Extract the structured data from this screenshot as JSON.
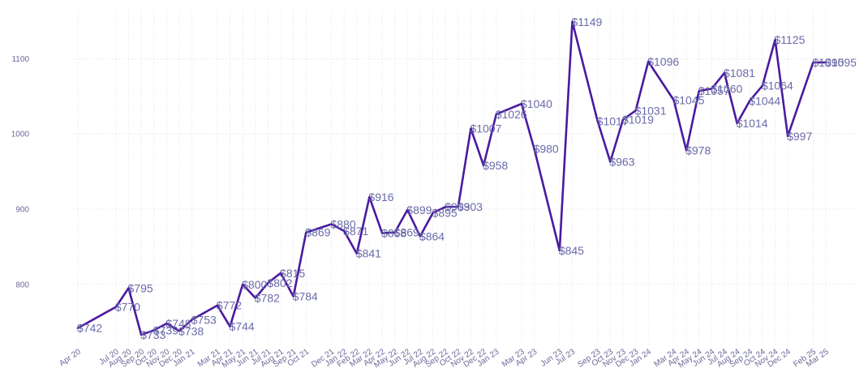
{
  "chart_data": {
    "type": "line",
    "title": "",
    "xlabel": "",
    "ylabel": "",
    "ylim": [
      720,
      1165
    ],
    "yticks": [
      800,
      900,
      1000,
      1100
    ],
    "grid": true,
    "line_color": "#4a1aa0",
    "label_prefix": "$",
    "points": [
      {
        "x": "Apr 20",
        "y": 742
      },
      {
        "x": "Jul 20",
        "y": 770
      },
      {
        "x": "Aug 20",
        "y": 795
      },
      {
        "x": "Sep 20",
        "y": 733
      },
      {
        "x": "Oct 20",
        "y": 739
      },
      {
        "x": "Nov 20",
        "y": 748
      },
      {
        "x": "Dec 20",
        "y": 738
      },
      {
        "x": "Jan 21",
        "y": 753
      },
      {
        "x": "Mar 21",
        "y": 772
      },
      {
        "x": "Apr 21",
        "y": 744
      },
      {
        "x": "May 21",
        "y": 800
      },
      {
        "x": "Jun 21",
        "y": 782
      },
      {
        "x": "Jul 21",
        "y": 802
      },
      {
        "x": "Aug 21",
        "y": 815
      },
      {
        "x": "Sep 21",
        "y": 784
      },
      {
        "x": "Oct 21",
        "y": 869
      },
      {
        "x": "Dec 21",
        "y": 880
      },
      {
        "x": "Jan 22",
        "y": 871
      },
      {
        "x": "Feb 22",
        "y": 841
      },
      {
        "x": "Mar 22",
        "y": 916
      },
      {
        "x": "Apr 22",
        "y": 868
      },
      {
        "x": "May 22",
        "y": 869
      },
      {
        "x": "Jun 22",
        "y": 899
      },
      {
        "x": "Jul 22",
        "y": 864
      },
      {
        "x": "Aug 22",
        "y": 895
      },
      {
        "x": "Sep 22",
        "y": 903
      },
      {
        "x": "Oct 22",
        "y": 903
      },
      {
        "x": "Nov 22",
        "y": 1007
      },
      {
        "x": "Dec 22",
        "y": 958
      },
      {
        "x": "Jan 23",
        "y": 1026
      },
      {
        "x": "Mar 23",
        "y": 1040
      },
      {
        "x": "Apr 23",
        "y": 980
      },
      {
        "x": "Jun 23",
        "y": 845
      },
      {
        "x": "Jul 23",
        "y": 1149
      },
      {
        "x": "Sep 23",
        "y": 1017
      },
      {
        "x": "Oct 23",
        "y": 963
      },
      {
        "x": "Nov 23",
        "y": 1019
      },
      {
        "x": "Dec 23",
        "y": 1031
      },
      {
        "x": "Jan 24",
        "y": 1096
      },
      {
        "x": "Mar 24",
        "y": 1045
      },
      {
        "x": "Apr 24",
        "y": 978
      },
      {
        "x": "May 24",
        "y": 1057
      },
      {
        "x": "Jun 24",
        "y": 1060
      },
      {
        "x": "Jul 24",
        "y": 1081
      },
      {
        "x": "Aug 24",
        "y": 1014
      },
      {
        "x": "Sep 24",
        "y": 1044
      },
      {
        "x": "Oct 24",
        "y": 1064
      },
      {
        "x": "Nov 24",
        "y": 1125
      },
      {
        "x": "Dec 24",
        "y": 997
      },
      {
        "x": "Feb 25",
        "y": 1095
      },
      {
        "x": "Mar 25",
        "y": 1095
      }
    ]
  }
}
